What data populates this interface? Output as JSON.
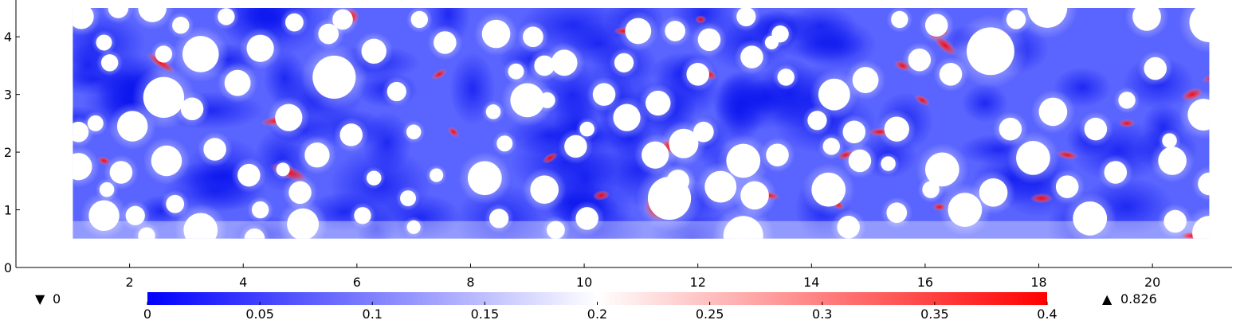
{
  "chart_data": {
    "type": "heatmap",
    "title": "",
    "xlabel": "",
    "ylabel": "",
    "xlim": [
      0,
      21.4
    ],
    "ylim": [
      0,
      4.5
    ],
    "x_ticks": [
      2,
      4,
      6,
      8,
      10,
      12,
      14,
      16,
      18,
      20
    ],
    "y_ticks": [
      0,
      1,
      2,
      3,
      4
    ],
    "field_domain": {
      "x": [
        1,
        21
      ],
      "y": [
        0.5,
        4.5
      ]
    },
    "colorbar": {
      "colormap": "blue-white-red",
      "colors": [
        "#0000ff",
        "#ffffff",
        "#ff0000"
      ],
      "range": [
        0,
        0.4
      ],
      "ticks": [
        "0",
        "0.05",
        "0.1",
        "0.15",
        "0.2",
        "0.25",
        "0.3",
        "0.35",
        "0.4"
      ]
    },
    "data_min": {
      "symbol": "▼",
      "value": "0"
    },
    "data_max": {
      "symbol": "▲",
      "value": "0.826"
    },
    "inclusions": [
      [
        1.15,
        4.35,
        0.22
      ],
      [
        1.55,
        3.9,
        0.14
      ],
      [
        1.8,
        4.5,
        0.18
      ],
      [
        2.4,
        4.5,
        0.25
      ],
      [
        2.9,
        4.2,
        0.15
      ],
      [
        3.25,
        3.7,
        0.32
      ],
      [
        2.6,
        3.7,
        0.15
      ],
      [
        3.7,
        4.35,
        0.15
      ],
      [
        1.65,
        3.55,
        0.15
      ],
      [
        4.3,
        3.8,
        0.24
      ],
      [
        3.9,
        3.2,
        0.23
      ],
      [
        2.6,
        2.95,
        0.36
      ],
      [
        3.1,
        2.75,
        0.2
      ],
      [
        4.8,
        2.6,
        0.24
      ],
      [
        1.4,
        2.5,
        0.14
      ],
      [
        2.05,
        2.45,
        0.27
      ],
      [
        1.1,
        2.35,
        0.18
      ],
      [
        3.5,
        2.05,
        0.2
      ],
      [
        4.1,
        1.6,
        0.2
      ],
      [
        4.7,
        1.7,
        0.12
      ],
      [
        5.0,
        1.3,
        0.2
      ],
      [
        5.3,
        1.95,
        0.22
      ],
      [
        5.9,
        2.3,
        0.2
      ],
      [
        5.6,
        3.3,
        0.38
      ],
      [
        5.75,
        4.3,
        0.18
      ],
      [
        6.3,
        3.75,
        0.22
      ],
      [
        4.9,
        4.25,
        0.16
      ],
      [
        5.5,
        4.05,
        0.18
      ],
      [
        7.1,
        4.3,
        0.15
      ],
      [
        7.55,
        3.9,
        0.2
      ],
      [
        6.7,
        3.05,
        0.17
      ],
      [
        7.0,
        2.35,
        0.13
      ],
      [
        6.3,
        1.55,
        0.13
      ],
      [
        6.9,
        1.2,
        0.14
      ],
      [
        7.0,
        0.7,
        0.12
      ],
      [
        6.1,
        0.9,
        0.15
      ],
      [
        5.05,
        0.75,
        0.28
      ],
      [
        4.2,
        0.5,
        0.18
      ],
      [
        3.25,
        0.65,
        0.3
      ],
      [
        2.3,
        0.55,
        0.15
      ],
      [
        1.55,
        0.9,
        0.27
      ],
      [
        2.1,
        0.9,
        0.17
      ],
      [
        1.6,
        1.35,
        0.13
      ],
      [
        2.8,
        1.1,
        0.16
      ],
      [
        2.65,
        1.85,
        0.27
      ],
      [
        1.1,
        1.75,
        0.24
      ],
      [
        1.85,
        1.65,
        0.2
      ],
      [
        4.3,
        1.0,
        0.15
      ],
      [
        7.4,
        1.6,
        0.12
      ],
      [
        8.25,
        1.55,
        0.3
      ],
      [
        8.4,
        2.7,
        0.13
      ],
      [
        8.6,
        2.15,
        0.14
      ],
      [
        8.45,
        4.05,
        0.25
      ],
      [
        9.1,
        4.0,
        0.18
      ],
      [
        9.3,
        3.5,
        0.18
      ],
      [
        8.8,
        3.4,
        0.14
      ],
      [
        9.65,
        3.55,
        0.23
      ],
      [
        9.0,
        2.9,
        0.3
      ],
      [
        9.35,
        2.9,
        0.14
      ],
      [
        8.5,
        0.85,
        0.17
      ],
      [
        9.3,
        1.35,
        0.25
      ],
      [
        9.5,
        0.65,
        0.16
      ],
      [
        10.05,
        0.85,
        0.2
      ],
      [
        9.85,
        2.1,
        0.2
      ],
      [
        10.05,
        2.4,
        0.13
      ],
      [
        10.35,
        3.0,
        0.2
      ],
      [
        10.7,
        3.55,
        0.17
      ],
      [
        10.95,
        4.1,
        0.23
      ],
      [
        10.75,
        2.6,
        0.24
      ],
      [
        11.3,
        2.85,
        0.22
      ],
      [
        11.25,
        1.95,
        0.24
      ],
      [
        11.5,
        1.2,
        0.38
      ],
      [
        11.65,
        1.5,
        0.2
      ],
      [
        11.75,
        2.15,
        0.26
      ],
      [
        12.0,
        3.35,
        0.2
      ],
      [
        12.1,
        2.35,
        0.18
      ],
      [
        11.6,
        4.1,
        0.18
      ],
      [
        12.2,
        3.95,
        0.2
      ],
      [
        12.95,
        3.65,
        0.2
      ],
      [
        12.4,
        1.4,
        0.28
      ],
      [
        12.8,
        1.85,
        0.3
      ],
      [
        12.8,
        0.55,
        0.35
      ],
      [
        13.0,
        1.25,
        0.25
      ],
      [
        13.4,
        1.95,
        0.2
      ],
      [
        12.85,
        4.35,
        0.17
      ],
      [
        13.3,
        3.9,
        0.12
      ],
      [
        13.45,
        4.05,
        0.15
      ],
      [
        13.55,
        3.3,
        0.15
      ],
      [
        14.1,
        2.55,
        0.17
      ],
      [
        14.35,
        2.1,
        0.15
      ],
      [
        14.4,
        3.0,
        0.28
      ],
      [
        14.75,
        2.35,
        0.2
      ],
      [
        14.95,
        3.25,
        0.23
      ],
      [
        14.3,
        1.35,
        0.3
      ],
      [
        14.85,
        1.85,
        0.2
      ],
      [
        15.5,
        2.4,
        0.22
      ],
      [
        15.35,
        1.8,
        0.13
      ],
      [
        15.5,
        0.95,
        0.18
      ],
      [
        14.65,
        0.7,
        0.2
      ],
      [
        15.55,
        4.3,
        0.15
      ],
      [
        15.9,
        3.6,
        0.2
      ],
      [
        16.45,
        3.35,
        0.2
      ],
      [
        16.2,
        4.2,
        0.2
      ],
      [
        16.3,
        1.7,
        0.3
      ],
      [
        16.1,
        1.35,
        0.15
      ],
      [
        16.7,
        1.0,
        0.3
      ],
      [
        17.2,
        1.3,
        0.25
      ],
      [
        17.5,
        2.4,
        0.2
      ],
      [
        17.15,
        3.75,
        0.42
      ],
      [
        17.6,
        4.3,
        0.17
      ],
      [
        18.15,
        4.5,
        0.35
      ],
      [
        18.25,
        2.7,
        0.25
      ],
      [
        17.9,
        1.9,
        0.3
      ],
      [
        18.5,
        1.4,
        0.2
      ],
      [
        18.9,
        0.85,
        0.3
      ],
      [
        19.0,
        2.4,
        0.2
      ],
      [
        19.35,
        1.65,
        0.2
      ],
      [
        19.55,
        2.9,
        0.15
      ],
      [
        20.05,
        3.45,
        0.2
      ],
      [
        19.9,
        4.35,
        0.25
      ],
      [
        20.35,
        1.85,
        0.25
      ],
      [
        20.4,
        0.8,
        0.2
      ],
      [
        20.3,
        2.2,
        0.13
      ],
      [
        21.0,
        4.25,
        0.35
      ],
      [
        20.9,
        2.65,
        0.28
      ],
      [
        21.0,
        1.45,
        0.2
      ],
      [
        21.0,
        0.6,
        0.3
      ]
    ],
    "hotspots": [
      [
        2.55,
        3.55,
        0.3,
        0.06,
        35
      ],
      [
        4.6,
        2.55,
        0.3,
        0.06,
        -10
      ],
      [
        4.8,
        1.65,
        0.35,
        0.08,
        20
      ],
      [
        5.9,
        4.35,
        0.15,
        0.1,
        70
      ],
      [
        3.95,
        3.3,
        0.18,
        0.05,
        10
      ],
      [
        7.45,
        3.35,
        0.15,
        0.05,
        -30
      ],
      [
        8.55,
        4.0,
        0.15,
        0.06,
        25
      ],
      [
        10.7,
        4.1,
        0.18,
        0.05,
        0
      ],
      [
        11.5,
        2.1,
        0.15,
        0.08,
        40
      ],
      [
        11.3,
        1.05,
        0.25,
        0.18,
        -60
      ],
      [
        13.25,
        1.25,
        0.2,
        0.05,
        10
      ],
      [
        12.2,
        3.35,
        0.15,
        0.06,
        30
      ],
      [
        14.6,
        1.95,
        0.15,
        0.05,
        -20
      ],
      [
        15.2,
        2.35,
        0.2,
        0.05,
        0
      ],
      [
        15.6,
        3.5,
        0.15,
        0.06,
        20
      ],
      [
        16.35,
        3.85,
        0.25,
        0.07,
        40
      ],
      [
        16.25,
        4.05,
        0.2,
        0.05,
        -20
      ],
      [
        18.05,
        1.2,
        0.2,
        0.06,
        0
      ],
      [
        18.5,
        1.95,
        0.2,
        0.05,
        10
      ],
      [
        19.55,
        2.5,
        0.15,
        0.05,
        0
      ],
      [
        20.7,
        3.0,
        0.2,
        0.07,
        -20
      ],
      [
        21.1,
        3.3,
        0.25,
        0.05,
        -15
      ],
      [
        20.7,
        0.55,
        0.2,
        0.05,
        0
      ],
      [
        7.7,
        2.35,
        0.12,
        0.05,
        40
      ],
      [
        12.05,
        4.3,
        0.1,
        0.05,
        0
      ],
      [
        14.45,
        1.1,
        0.15,
        0.05,
        30
      ],
      [
        2.1,
        2.4,
        0.15,
        0.05,
        -20
      ],
      [
        1.55,
        1.85,
        0.12,
        0.05,
        20
      ],
      [
        16.25,
        1.05,
        0.12,
        0.05,
        0
      ],
      [
        9.4,
        1.9,
        0.15,
        0.05,
        -30
      ],
      [
        15.95,
        2.9,
        0.15,
        0.05,
        30
      ],
      [
        10.3,
        1.25,
        0.15,
        0.06,
        -10
      ]
    ]
  }
}
